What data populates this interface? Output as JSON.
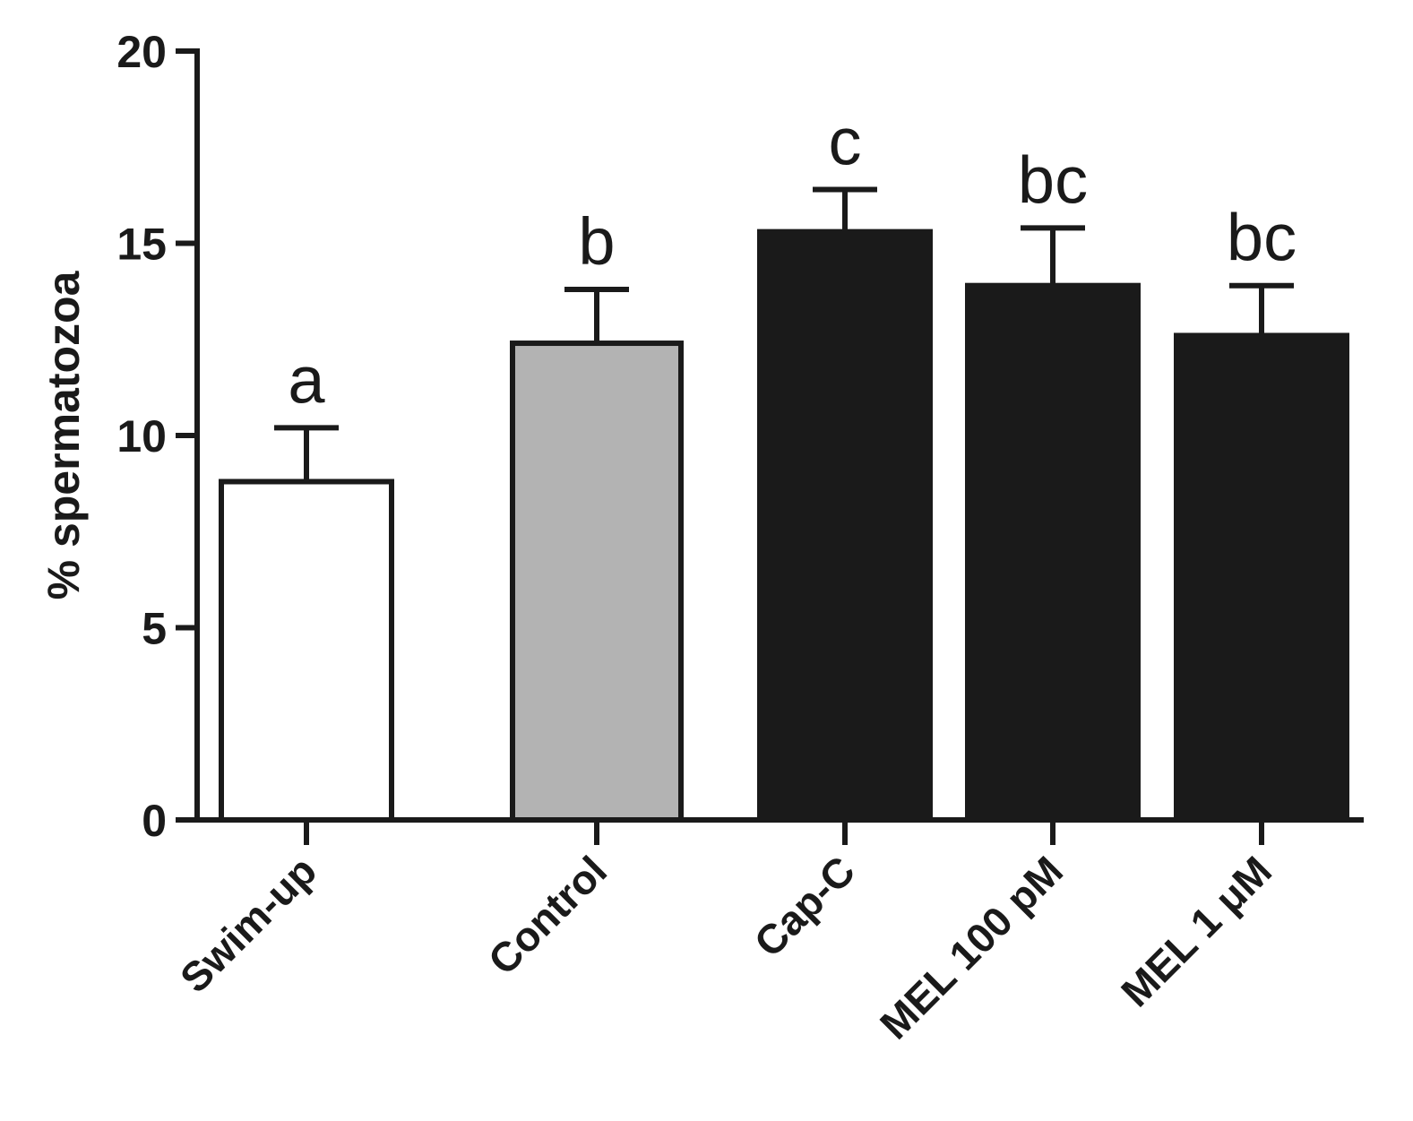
{
  "chart_data": {
    "type": "bar",
    "title": "",
    "xlabel": "",
    "ylabel": "% spermatozoa",
    "ylim": [
      0,
      20
    ],
    "yticks": [
      0,
      5,
      10,
      15,
      20
    ],
    "grid": false,
    "categories": [
      "Swim-up",
      "Control",
      "Cap-C",
      "MEL 100 pM",
      "MEL 1  μM"
    ],
    "values": [
      8.8,
      12.4,
      15.3,
      13.9,
      12.6
    ],
    "errors": [
      1.4,
      1.4,
      1.1,
      1.5,
      1.3
    ],
    "significance": [
      "a",
      "b",
      "c",
      "bc",
      "bc"
    ],
    "colors": {
      "Swim-up": "#ffffff",
      "Control": "#b3b3b3",
      "Cap-C": "#1a1a1a",
      "MEL 100 pM": "#1a1a1a",
      "MEL 1  μM": "#1a1a1a",
      "axis": "#1a1a1a"
    }
  }
}
